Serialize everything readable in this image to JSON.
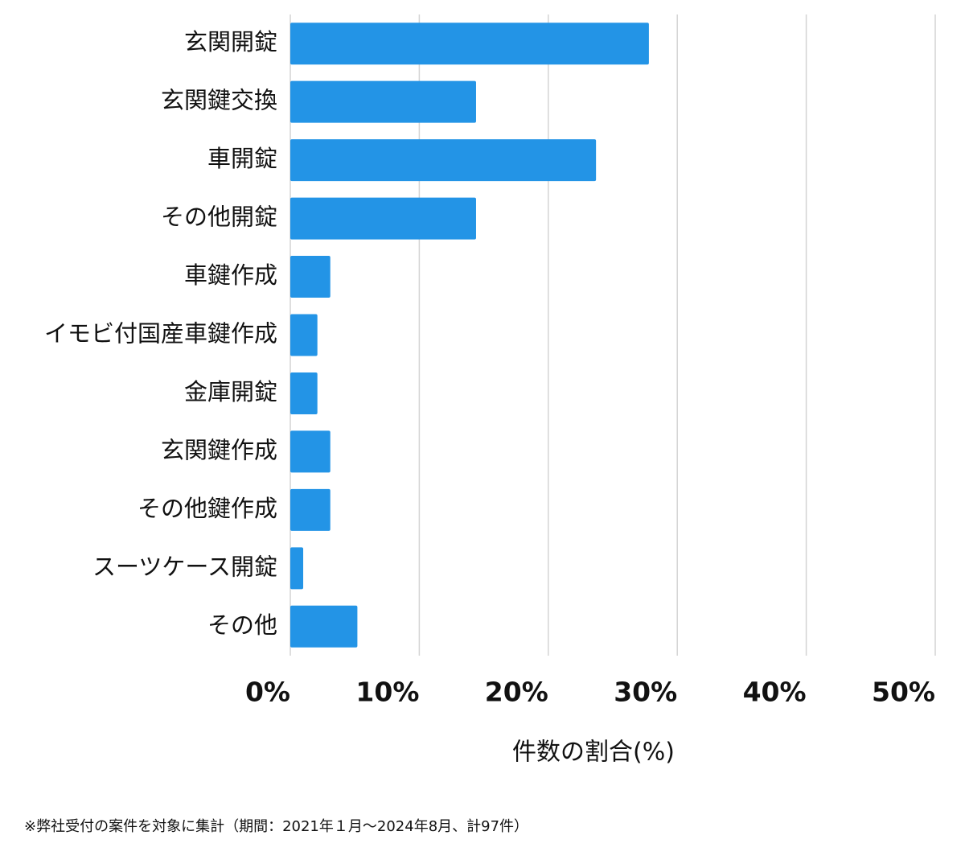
{
  "chart_data": {
    "type": "barh",
    "categories": [
      "玄関開錠",
      "玄関鍵交換",
      "車開錠",
      "その他開錠",
      "車鍵作成",
      "イモビ付国産車鍵作成",
      "金庫開錠",
      "玄関鍵作成",
      "その他鍵作成",
      "スーツケース開錠",
      "その他"
    ],
    "values": [
      27.8,
      14.4,
      23.7,
      14.4,
      3.1,
      2.1,
      2.1,
      3.1,
      3.1,
      1.0,
      5.2
    ],
    "color": "#2394e6",
    "xlim": [
      0,
      50
    ],
    "xticks": [
      {
        "value": 0,
        "label": "0%"
      },
      {
        "value": 10,
        "label": "10%"
      },
      {
        "value": 20,
        "label": "20%"
      },
      {
        "value": 30,
        "label": "30%"
      },
      {
        "value": 40,
        "label": "40%"
      },
      {
        "value": 50,
        "label": "50%"
      }
    ],
    "xlabel": "件数の割合(%)",
    "grid": true,
    "note": "※弊社受付の案件を対象に集計（期間：2021年１月～2024年8月、計97件）"
  }
}
